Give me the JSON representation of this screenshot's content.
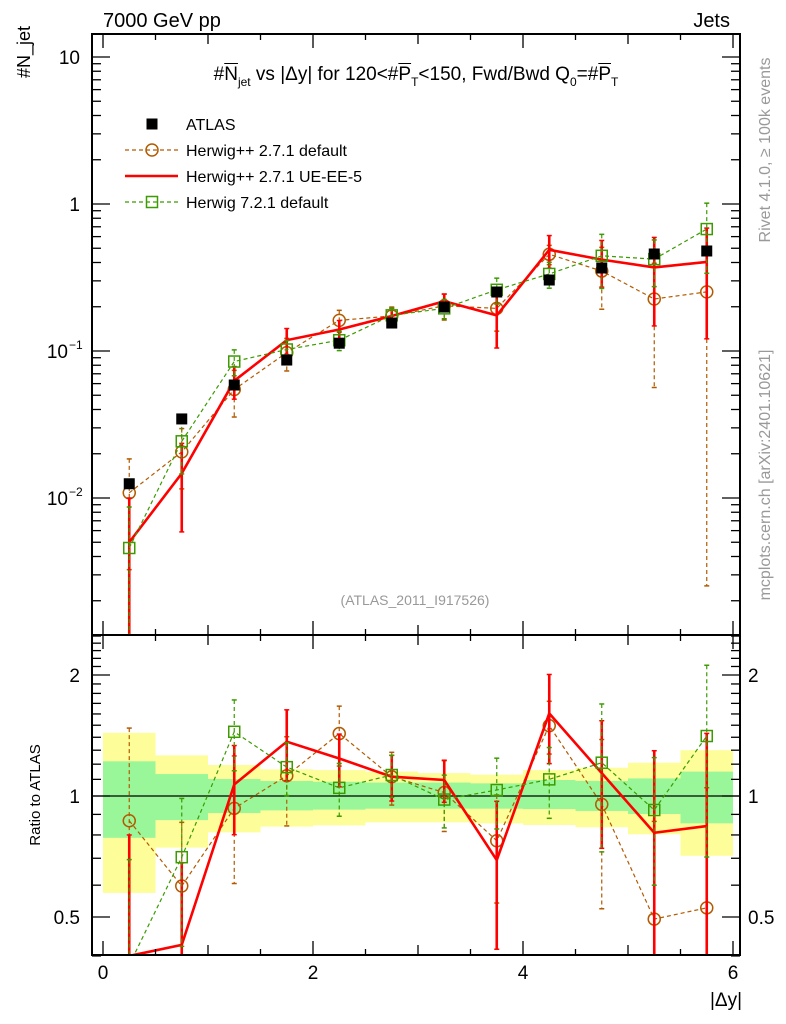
{
  "header": {
    "left": "7000 GeV pp",
    "right": "Jets"
  },
  "side_text": {
    "rivet": "Rivet 4.1.0, ≥ 100k events",
    "mcplots": "mcplots.cern.ch [arXiv:2401.10621]"
  },
  "analysis_id": "(ATLAS_2011_I917526)",
  "ylabel_parts": [
    {
      "t": "#"
    },
    {
      "t": "N",
      "over": true
    },
    {
      "t": "jet",
      "sub": true
    }
  ],
  "title_parts": [
    {
      "t": "#"
    },
    {
      "t": "N",
      "over": true
    },
    {
      "t": "jet",
      "sub": true
    },
    {
      "t": " vs |Δy| for 120<#"
    },
    {
      "t": "P",
      "over": true
    },
    {
      "t": "T",
      "sub": true
    },
    {
      "t": "<150, Fwd/Bwd Q"
    },
    {
      "t": "0",
      "sub": true
    },
    {
      "t": "=#"
    },
    {
      "t": "P",
      "over": true
    },
    {
      "t": "T",
      "sub": true
    }
  ],
  "ratio_ylabel": "Ratio to ATLAS",
  "colors": {
    "atlas": "#000000",
    "herwigpp_default": "#b35a00",
    "herwigpp_ueee5": "#ff0000",
    "herwig7": "#3c9b00",
    "band_green": "#99f799",
    "band_yellow": "#fdfd99"
  },
  "chart_data": {
    "type": "scatter",
    "title": "#N_jet vs |Δy| for 120<#P_T<150, Fwd/Bwd Q_0=#P_T",
    "xlabel": "|Δy|",
    "ylabel": "#N_jet",
    "xlim": [
      -0.1,
      6.07
    ],
    "ylim": [
      0.00117,
      14.3
    ],
    "yscale": "log",
    "x_ticks": [
      "0",
      "2",
      "4",
      "6"
    ],
    "y_ticks": [
      {
        "v": 10,
        "label": "10"
      },
      {
        "v": 1,
        "label": "1"
      },
      {
        "v": 0.1,
        "label": "10",
        "exp": "−1"
      },
      {
        "v": 0.01,
        "label": "10",
        "exp": "−2"
      }
    ],
    "legend_position": "top-left",
    "x": [
      0.25,
      0.75,
      1.25,
      1.75,
      2.25,
      2.75,
      3.25,
      3.75,
      4.25,
      4.75,
      5.25,
      5.75
    ],
    "series": [
      {
        "name": "ATLAS",
        "style": "data",
        "values": [
          0.0125,
          0.0345,
          0.0587,
          0.0868,
          0.113,
          0.155,
          0.199,
          0.252,
          0.304,
          0.367,
          0.457,
          0.479
        ],
        "rel_err": [
          0.05,
          0.04,
          0.04,
          0.04,
          0.04,
          0.04,
          0.04,
          0.05,
          0.05,
          0.05,
          0.05,
          0.05
        ]
      },
      {
        "name": "Herwig++ 2.7.1 default",
        "style": "circle-dashed",
        "values": [
          0.01085,
          0.0206,
          0.0547,
          0.0975,
          0.1616,
          0.1731,
          0.203,
          0.195,
          0.4548,
          0.3498,
          0.2258,
          0.2524
        ],
        "rel_err": [
          0.7,
          0.44,
          0.35,
          0.25,
          0.17,
          0.15,
          0.2,
          0.3,
          0.15,
          0.45,
          0.75,
          0.99
        ]
      },
      {
        "name": "Herwig++ 2.7.1 UE-EE-5",
        "style": "line",
        "values": [
          0.005,
          0.0147,
          0.0627,
          0.1185,
          0.1401,
          0.1731,
          0.2181,
          0.1746,
          0.4879,
          0.4184,
          0.3702,
          0.4033
        ],
        "rel_err": [
          1.0,
          0.6,
          0.25,
          0.2,
          0.15,
          0.13,
          0.12,
          0.4,
          0.25,
          0.35,
          0.6,
          0.7
        ]
      },
      {
        "name": "Herwig 7.2.1 default",
        "style": "square-dashed",
        "values": [
          0.00457,
          0.0243,
          0.0848,
          0.1024,
          0.1184,
          0.1748,
          0.195,
          0.2608,
          0.3344,
          0.4441,
          0.4218,
          0.6754
        ],
        "rel_err": [
          0.9,
          0.4,
          0.2,
          0.15,
          0.15,
          0.12,
          0.15,
          0.2,
          0.2,
          0.4,
          0.35,
          0.5
        ]
      }
    ],
    "ratio": {
      "ylabel": "Ratio to ATLAS",
      "ylim": [
        0.4,
        2.51
      ],
      "y_ticks": [
        {
          "v": 2,
          "label": "2"
        },
        {
          "v": 1,
          "label": "1"
        },
        {
          "v": 0.5,
          "label": "0.5"
        }
      ],
      "bin_edges": [
        0,
        0.5,
        1,
        1.5,
        2,
        2.5,
        3,
        3.5,
        4,
        4.5,
        5,
        5.5,
        6
      ],
      "band_green": [
        [
          0.787,
          1.22
        ],
        [
          0.871,
          1.134
        ],
        [
          0.907,
          1.102
        ],
        [
          0.921,
          1.09
        ],
        [
          0.925,
          1.085
        ],
        [
          0.93,
          1.08
        ],
        [
          0.93,
          1.08
        ],
        [
          0.93,
          1.075
        ],
        [
          0.928,
          1.096
        ],
        [
          0.918,
          1.09
        ],
        [
          0.902,
          1.106
        ],
        [
          0.855,
          1.15
        ]
      ],
      "band_yellow": [
        [
          0.574,
          1.436
        ],
        [
          0.744,
          1.262
        ],
        [
          0.812,
          1.194
        ],
        [
          0.839,
          1.165
        ],
        [
          0.845,
          1.16
        ],
        [
          0.86,
          1.15
        ],
        [
          0.86,
          1.14
        ],
        [
          0.855,
          1.13
        ],
        [
          0.847,
          1.16
        ],
        [
          0.836,
          1.176
        ],
        [
          0.803,
          1.21
        ],
        [
          0.71,
          1.3
        ]
      ]
    }
  }
}
